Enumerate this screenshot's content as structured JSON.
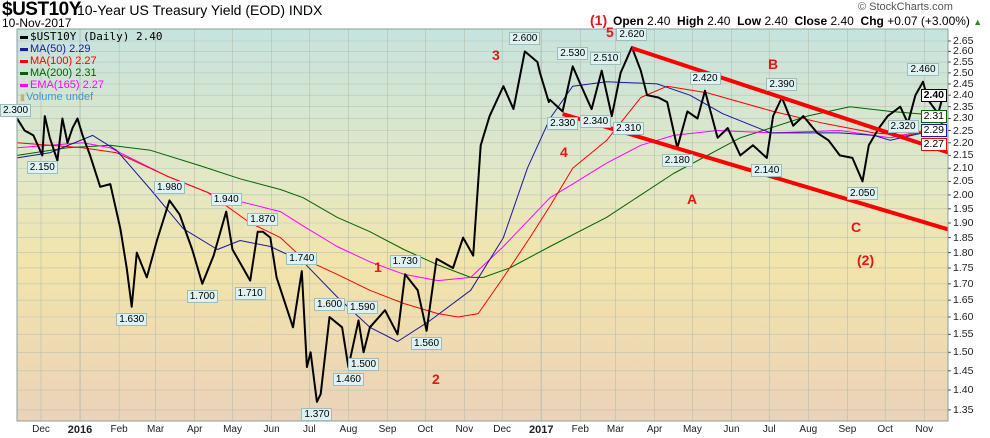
{
  "header": {
    "symbol": "$UST10Y",
    "name": "10-Year US Treasury Yield (EOD)  INDX",
    "date": "10-Nov-2017",
    "watermark": "© StockCharts.com"
  },
  "ohlc": {
    "open_label": "Open",
    "open": "2.40",
    "high_label": "High",
    "high": "2.40",
    "low_label": "Low",
    "low": "2.40",
    "close_label": "Close",
    "close": "2.40",
    "chg_label": "Chg",
    "chg": "+0.07 (+3.00%)",
    "direction_icon": "up-triangle-icon"
  },
  "legend": [
    {
      "label": "$UST10Y (Daily) 2.40",
      "color": "#000000"
    },
    {
      "label": "MA(50) 2.29",
      "color": "#1a1a9a"
    },
    {
      "label": "MA(100) 2.27",
      "color": "#ff0000"
    },
    {
      "label": "MA(200) 2.31",
      "color": "#006400"
    },
    {
      "label": "EMA(165) 2.27",
      "color": "#ff00ff"
    },
    {
      "label": "Volume undef",
      "color": "#3a9ad0"
    }
  ],
  "left_axis_label": "2.300",
  "waves": [
    "(1)",
    "5",
    "3",
    "4",
    "1",
    "2",
    "A",
    "B",
    "C",
    "(2)"
  ],
  "chart_data": {
    "type": "line",
    "title": "$UST10Y 10-Year US Treasury Yield (EOD)",
    "x_unit": "days since 2015-12-01",
    "y_scale": "log",
    "ylim": [
      1.35,
      2.65
    ],
    "y_ticks": [
      "1.35",
      "1.40",
      "1.45",
      "1.50",
      "1.55",
      "1.60",
      "1.65",
      "1.70",
      "1.75",
      "1.80",
      "1.85",
      "1.90",
      "1.95",
      "2.00",
      "2.05",
      "2.10",
      "2.15",
      "2.20",
      "2.25",
      "2.30",
      "2.35",
      "2.40",
      "2.45",
      "2.50",
      "2.55",
      "2.60",
      "2.65"
    ],
    "x_ticks": [
      {
        "label": "Dec",
        "day": 0
      },
      {
        "label": "2016",
        "day": 31,
        "year": true
      },
      {
        "label": "Feb",
        "day": 62
      },
      {
        "label": "Mar",
        "day": 91
      },
      {
        "label": "Apr",
        "day": 122
      },
      {
        "label": "May",
        "day": 152
      },
      {
        "label": "Jun",
        "day": 183
      },
      {
        "label": "Jul",
        "day": 213
      },
      {
        "label": "Aug",
        "day": 244
      },
      {
        "label": "Sep",
        "day": 275
      },
      {
        "label": "Oct",
        "day": 305
      },
      {
        "label": "Nov",
        "day": 336
      },
      {
        "label": "Dec",
        "day": 366
      },
      {
        "label": "2017",
        "day": 397,
        "year": true
      },
      {
        "label": "Feb",
        "day": 428
      },
      {
        "label": "Mar",
        "day": 456
      },
      {
        "label": "Apr",
        "day": 487
      },
      {
        "label": "May",
        "day": 517
      },
      {
        "label": "Jun",
        "day": 548
      },
      {
        "label": "Jul",
        "day": 578
      },
      {
        "label": "Aug",
        "day": 609
      },
      {
        "label": "Sep",
        "day": 640
      },
      {
        "label": "Oct",
        "day": 670
      },
      {
        "label": "Nov",
        "day": 701
      }
    ],
    "grid": true,
    "series": [
      {
        "name": "$UST10Y (Daily)",
        "color": "#000000",
        "width": 2,
        "points": [
          [
            -19,
            2.3
          ],
          [
            -13,
            2.25
          ],
          [
            -6,
            2.23
          ],
          [
            1,
            2.15
          ],
          [
            3,
            2.31
          ],
          [
            7,
            2.22
          ],
          [
            13,
            2.13
          ],
          [
            17,
            2.3
          ],
          [
            21,
            2.2
          ],
          [
            25,
            2.26
          ],
          [
            29,
            2.3
          ],
          [
            33,
            2.23
          ],
          [
            39,
            2.15
          ],
          [
            47,
            2.03
          ],
          [
            55,
            2.04
          ],
          [
            63,
            1.88
          ],
          [
            68,
            1.75
          ],
          [
            72,
            1.63
          ],
          [
            76,
            1.8
          ],
          [
            84,
            1.72
          ],
          [
            92,
            1.84
          ],
          [
            102,
            1.98
          ],
          [
            110,
            1.93
          ],
          [
            120,
            1.81
          ],
          [
            128,
            1.7
          ],
          [
            137,
            1.79
          ],
          [
            147,
            1.94
          ],
          [
            152,
            1.81
          ],
          [
            166,
            1.71
          ],
          [
            172,
            1.87
          ],
          [
            176,
            1.87
          ],
          [
            182,
            1.85
          ],
          [
            187,
            1.72
          ],
          [
            200,
            1.57
          ],
          [
            207,
            1.74
          ],
          [
            211,
            1.46
          ],
          [
            214,
            1.5
          ],
          [
            219,
            1.37
          ],
          [
            222,
            1.39
          ],
          [
            229,
            1.6
          ],
          [
            239,
            1.57
          ],
          [
            244,
            1.46
          ],
          [
            252,
            1.59
          ],
          [
            256,
            1.5
          ],
          [
            261,
            1.57
          ],
          [
            273,
            1.62
          ],
          [
            283,
            1.55
          ],
          [
            289,
            1.73
          ],
          [
            299,
            1.68
          ],
          [
            306,
            1.56
          ],
          [
            314,
            1.78
          ],
          [
            327,
            1.75
          ],
          [
            335,
            1.85
          ],
          [
            343,
            1.79
          ],
          [
            349,
            2.19
          ],
          [
            356,
            2.31
          ],
          [
            367,
            2.44
          ],
          [
            375,
            2.34
          ],
          [
            384,
            2.6
          ],
          [
            394,
            2.55
          ],
          [
            403,
            2.37
          ],
          [
            396,
            2.5
          ],
          [
            404,
            2.38
          ],
          [
            414,
            2.33
          ],
          [
            422,
            2.53
          ],
          [
            428,
            2.45
          ],
          [
            437,
            2.34
          ],
          [
            445,
            2.51
          ],
          [
            453,
            2.31
          ],
          [
            460,
            2.5
          ],
          [
            469,
            2.62
          ],
          [
            476,
            2.51
          ],
          [
            481,
            2.4
          ],
          [
            490,
            2.39
          ],
          [
            497,
            2.37
          ],
          [
            505,
            2.18
          ],
          [
            513,
            2.33
          ],
          [
            521,
            2.3
          ],
          [
            527,
            2.42
          ],
          [
            537,
            2.22
          ],
          [
            545,
            2.26
          ],
          [
            555,
            2.15
          ],
          [
            565,
            2.19
          ],
          [
            576,
            2.14
          ],
          [
            581,
            2.31
          ],
          [
            588,
            2.39
          ],
          [
            597,
            2.27
          ],
          [
            605,
            2.31
          ],
          [
            616,
            2.24
          ],
          [
            625,
            2.21
          ],
          [
            634,
            2.15
          ],
          [
            644,
            2.14
          ],
          [
            652,
            2.05
          ],
          [
            657,
            2.19
          ],
          [
            665,
            2.26
          ],
          [
            672,
            2.31
          ],
          [
            682,
            2.35
          ],
          [
            688,
            2.28
          ],
          [
            694,
            2.4
          ],
          [
            700,
            2.46
          ],
          [
            704,
            2.38
          ],
          [
            712,
            2.32
          ],
          [
            716,
            2.4
          ]
        ]
      },
      {
        "name": "MA(50)",
        "color": "#1a1a9a",
        "width": 1,
        "points": [
          [
            -19,
            2.14
          ],
          [
            7,
            2.16
          ],
          [
            41,
            2.23
          ],
          [
            60,
            2.17
          ],
          [
            87,
            2.02
          ],
          [
            113,
            1.88
          ],
          [
            140,
            1.81
          ],
          [
            158,
            1.84
          ],
          [
            182,
            1.82
          ],
          [
            208,
            1.77
          ],
          [
            235,
            1.66
          ],
          [
            261,
            1.57
          ],
          [
            283,
            1.53
          ],
          [
            309,
            1.59
          ],
          [
            341,
            1.68
          ],
          [
            367,
            1.85
          ],
          [
            386,
            2.1
          ],
          [
            404,
            2.3
          ],
          [
            422,
            2.44
          ],
          [
            449,
            2.46
          ],
          [
            489,
            2.45
          ],
          [
            515,
            2.4
          ],
          [
            541,
            2.32
          ],
          [
            579,
            2.24
          ],
          [
            608,
            2.24
          ],
          [
            634,
            2.24
          ],
          [
            661,
            2.23
          ],
          [
            674,
            2.21
          ],
          [
            700,
            2.24
          ],
          [
            719,
            2.29
          ]
        ]
      },
      {
        "name": "MA(100)",
        "color": "#ff0000",
        "width": 1,
        "points": [
          [
            -19,
            2.2
          ],
          [
            33,
            2.18
          ],
          [
            60,
            2.16
          ],
          [
            100,
            2.07
          ],
          [
            132,
            2.01
          ],
          [
            166,
            1.9
          ],
          [
            190,
            1.85
          ],
          [
            208,
            1.78
          ],
          [
            235,
            1.73
          ],
          [
            261,
            1.68
          ],
          [
            288,
            1.64
          ],
          [
            315,
            1.61
          ],
          [
            331,
            1.6
          ],
          [
            347,
            1.61
          ],
          [
            367,
            1.72
          ],
          [
            388,
            1.85
          ],
          [
            404,
            1.96
          ],
          [
            422,
            2.1
          ],
          [
            449,
            2.21
          ],
          [
            476,
            2.39
          ],
          [
            497,
            2.44
          ],
          [
            529,
            2.41
          ],
          [
            581,
            2.33
          ],
          [
            621,
            2.28
          ],
          [
            661,
            2.24
          ],
          [
            688,
            2.23
          ],
          [
            719,
            2.27
          ]
        ]
      },
      {
        "name": "MA(200)",
        "color": "#006400",
        "width": 1,
        "points": [
          [
            -19,
            2.15
          ],
          [
            21,
            2.18
          ],
          [
            55,
            2.19
          ],
          [
            87,
            2.17
          ],
          [
            126,
            2.11
          ],
          [
            158,
            2.06
          ],
          [
            190,
            2.02
          ],
          [
            208,
            1.99
          ],
          [
            235,
            1.92
          ],
          [
            261,
            1.87
          ],
          [
            288,
            1.81
          ],
          [
            315,
            1.76
          ],
          [
            341,
            1.72
          ],
          [
            351,
            1.72
          ],
          [
            372,
            1.75
          ],
          [
            404,
            1.82
          ],
          [
            449,
            1.92
          ],
          [
            502,
            2.08
          ],
          [
            555,
            2.22
          ],
          [
            608,
            2.31
          ],
          [
            642,
            2.35
          ],
          [
            674,
            2.33
          ],
          [
            719,
            2.31
          ]
        ]
      },
      {
        "name": "EMA(165)",
        "color": "#ff00ff",
        "width": 1,
        "points": [
          [
            -19,
            2.18
          ],
          [
            33,
            2.2
          ],
          [
            55,
            2.18
          ],
          [
            100,
            2.07
          ],
          [
            137,
            2.0
          ],
          [
            190,
            1.94
          ],
          [
            208,
            1.89
          ],
          [
            235,
            1.82
          ],
          [
            261,
            1.77
          ],
          [
            288,
            1.73
          ],
          [
            315,
            1.71
          ],
          [
            341,
            1.72
          ],
          [
            367,
            1.82
          ],
          [
            404,
            1.99
          ],
          [
            422,
            2.04
          ],
          [
            449,
            2.12
          ],
          [
            476,
            2.19
          ],
          [
            502,
            2.23
          ],
          [
            537,
            2.25
          ],
          [
            581,
            2.24
          ],
          [
            634,
            2.25
          ],
          [
            674,
            2.22
          ],
          [
            719,
            2.27
          ]
        ]
      }
    ],
    "trendlines": [
      {
        "name": "upper-trendline",
        "color": "#ff0000",
        "from": [
          469,
          2.616
        ],
        "to": [
          719,
          2.163
        ]
      },
      {
        "name": "lower-trendline",
        "color": "#ff0000",
        "from": [
          414,
          2.319
        ],
        "to": [
          719,
          1.879
        ]
      }
    ],
    "annotations": [
      {
        "text": "2.150",
        "day": 1,
        "value": 2.15,
        "pos": "below"
      },
      {
        "text": "1.630",
        "day": 72,
        "value": 1.63,
        "pos": "below"
      },
      {
        "text": "1.980",
        "day": 102,
        "value": 1.98,
        "pos": "above"
      },
      {
        "text": "1.700",
        "day": 128,
        "value": 1.7,
        "pos": "below"
      },
      {
        "text": "1.940",
        "day": 147,
        "value": 1.94,
        "pos": "above"
      },
      {
        "text": "1.710",
        "day": 166,
        "value": 1.71,
        "pos": "below"
      },
      {
        "text": "1.870",
        "day": 176,
        "value": 1.87,
        "pos": "above"
      },
      {
        "text": "1.740",
        "day": 207,
        "value": 1.74,
        "pos": "above"
      },
      {
        "text": "1.370",
        "day": 219,
        "value": 1.37,
        "pos": "below"
      },
      {
        "text": "1.600",
        "day": 229,
        "value": 1.6,
        "pos": "above"
      },
      {
        "text": "1.460",
        "day": 244,
        "value": 1.46,
        "pos": "below"
      },
      {
        "text": "1.590",
        "day": 252,
        "value": 1.59,
        "pos": "above"
      },
      {
        "text": "1.500",
        "day": 256,
        "value": 1.5,
        "pos": "below"
      },
      {
        "text": "1.730",
        "day": 289,
        "value": 1.73,
        "pos": "above"
      },
      {
        "text": "1.560",
        "day": 306,
        "value": 1.56,
        "pos": "below"
      },
      {
        "text": "2.600",
        "day": 384,
        "value": 2.6,
        "pos": "above"
      },
      {
        "text": "2.330",
        "day": 414,
        "value": 2.33,
        "pos": "below"
      },
      {
        "text": "2.530",
        "day": 422,
        "value": 2.53,
        "pos": "above"
      },
      {
        "text": "2.340",
        "day": 437,
        "value": 2.34,
        "pos": "below"
      },
      {
        "text": "2.510",
        "day": 445,
        "value": 2.51,
        "pos": "above"
      },
      {
        "text": "2.310",
        "day": 453,
        "value": 2.31,
        "pos": "below"
      },
      {
        "text": "2.620",
        "day": 469,
        "value": 2.62,
        "pos": "above"
      },
      {
        "text": "2.180",
        "day": 505,
        "value": 2.18,
        "pos": "below"
      },
      {
        "text": "2.420",
        "day": 527,
        "value": 2.42,
        "pos": "above"
      },
      {
        "text": "2.140",
        "day": 576,
        "value": 2.14,
        "pos": "below"
      },
      {
        "text": "2.390",
        "day": 588,
        "value": 2.39,
        "pos": "above"
      },
      {
        "text": "2.050",
        "day": 652,
        "value": 2.05,
        "pos": "below"
      },
      {
        "text": "2.460",
        "day": 700,
        "value": 2.46,
        "pos": "above"
      },
      {
        "text": "2.320",
        "day": 712,
        "value": 2.32,
        "pos": "below"
      }
    ],
    "last_value_badges": [
      {
        "text": "2.27",
        "value": 2.27,
        "color": "#ff0000"
      },
      {
        "text": "2.29",
        "value": 2.29,
        "color": "#1a1a9a"
      },
      {
        "text": "2.31",
        "value": 2.31,
        "color": "#006400"
      },
      {
        "text": "2.40",
        "value": 2.4,
        "color": "#000000",
        "bold": true
      }
    ]
  }
}
